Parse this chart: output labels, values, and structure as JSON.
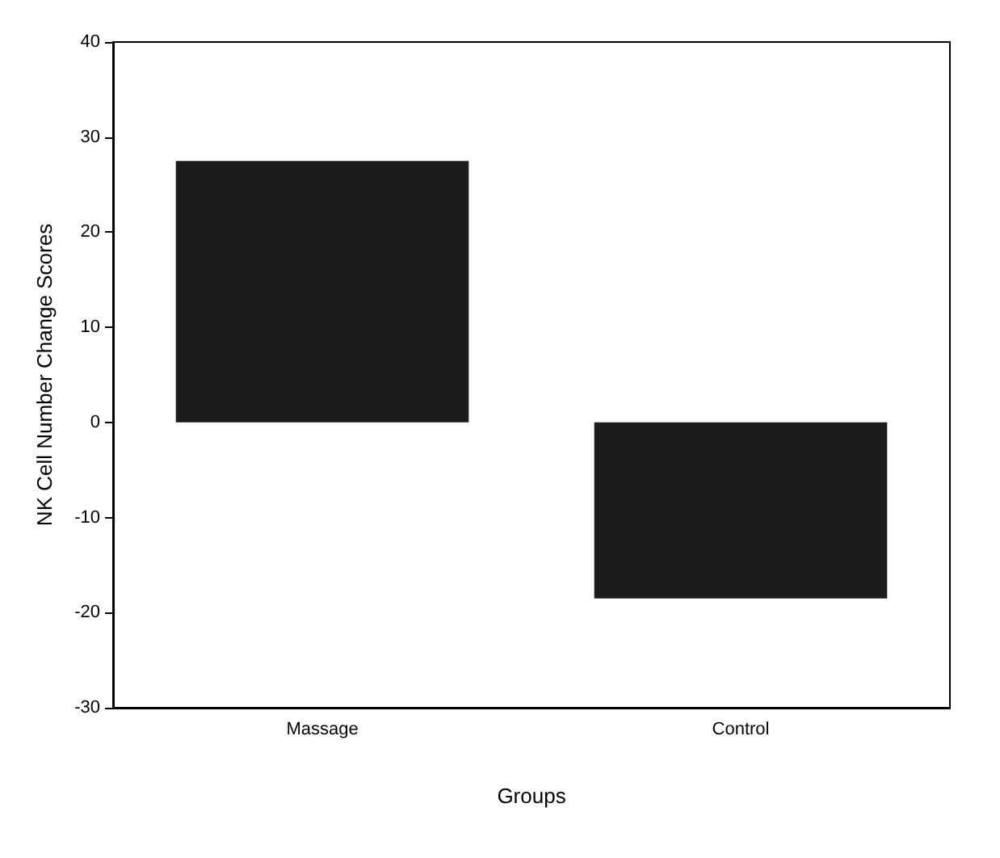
{
  "chart_data": {
    "type": "bar",
    "xlabel": "Groups",
    "ylabel": "NK Cell Number Change Scores",
    "categories": [
      "Massage",
      "Control"
    ],
    "values": [
      27.5,
      -18.5
    ],
    "color": "#1c1c1c",
    "ylim": [
      -30,
      40
    ],
    "yticks": [
      -30,
      -20,
      -10,
      0,
      10,
      20,
      30,
      40
    ],
    "grid": false
  }
}
